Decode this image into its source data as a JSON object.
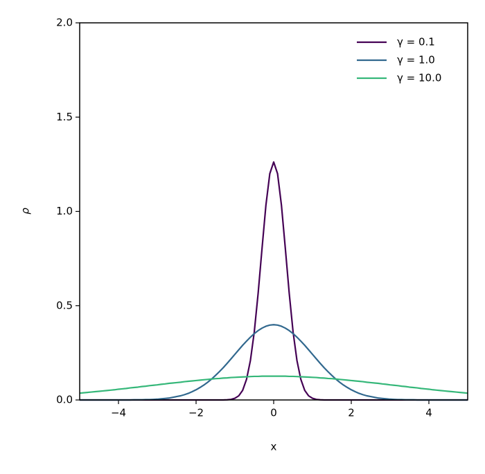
{
  "chart_data": {
    "type": "line",
    "xlabel": "x",
    "ylabel": "ρ",
    "x": [
      -5.0,
      -4.9,
      -4.8,
      -4.7,
      -4.6,
      -4.5,
      -4.4,
      -4.3,
      -4.2,
      -4.1,
      -4.0,
      -3.9,
      -3.8,
      -3.7,
      -3.6,
      -3.5,
      -3.4,
      -3.3,
      -3.2,
      -3.1,
      -3.0,
      -2.9,
      -2.8,
      -2.7,
      -2.6,
      -2.5,
      -2.4,
      -2.3,
      -2.2,
      -2.1,
      -2.0,
      -1.9,
      -1.8,
      -1.7,
      -1.6,
      -1.5,
      -1.4,
      -1.3,
      -1.2,
      -1.1,
      -1.0,
      -0.9,
      -0.8,
      -0.7,
      -0.6,
      -0.5,
      -0.4,
      -0.3,
      -0.2,
      -0.1,
      0.0,
      0.1,
      0.2,
      0.3,
      0.4,
      0.5,
      0.6,
      0.7,
      0.8,
      0.9,
      1.0,
      1.1,
      1.2,
      1.3,
      1.4,
      1.5,
      1.6,
      1.7,
      1.8,
      1.9,
      2.0,
      2.1,
      2.2,
      2.3,
      2.4,
      2.5,
      2.6,
      2.7,
      2.8,
      2.9,
      3.0,
      3.1,
      3.2,
      3.3,
      3.4,
      3.5,
      3.6,
      3.7,
      3.8,
      3.9,
      4.0,
      4.1,
      4.2,
      4.3,
      4.4,
      4.5,
      4.6,
      4.7,
      4.8,
      4.9,
      5.0
    ],
    "series": [
      {
        "name": "γ = 0.1",
        "color": "#440154",
        "values": [
          0,
          0,
          0,
          0,
          0,
          0,
          0,
          0,
          0,
          0,
          0,
          0,
          0,
          0,
          0,
          0,
          0,
          0,
          0,
          0,
          0,
          0,
          0,
          0,
          0,
          0,
          0,
          0,
          0,
          0,
          0,
          0,
          0,
          0,
          0,
          0,
          0,
          0,
          0.001,
          0.003,
          0.009,
          0.022,
          0.051,
          0.109,
          0.209,
          0.361,
          0.567,
          0.804,
          1.033,
          1.2,
          1.262,
          1.2,
          1.033,
          0.804,
          0.567,
          0.361,
          0.209,
          0.109,
          0.051,
          0.022,
          0.009,
          0.003,
          0.001,
          0,
          0,
          0,
          0,
          0,
          0,
          0,
          0,
          0,
          0,
          0,
          0,
          0,
          0,
          0,
          0,
          0,
          0,
          0,
          0,
          0,
          0,
          0,
          0,
          0,
          0,
          0,
          0,
          0,
          0,
          0,
          0,
          0,
          0,
          0,
          0,
          0,
          0
        ]
      },
      {
        "name": "γ = 1.0",
        "color": "#31688e",
        "values": [
          0,
          0,
          0,
          0,
          0,
          0,
          0,
          0,
          0,
          0,
          0,
          0,
          0,
          0,
          0.001,
          0.001,
          0.001,
          0.002,
          0.002,
          0.003,
          0.004,
          0.006,
          0.008,
          0.01,
          0.014,
          0.018,
          0.022,
          0.028,
          0.035,
          0.044,
          0.054,
          0.066,
          0.079,
          0.094,
          0.111,
          0.13,
          0.15,
          0.171,
          0.194,
          0.218,
          0.242,
          0.266,
          0.29,
          0.312,
          0.333,
          0.352,
          0.368,
          0.381,
          0.391,
          0.397,
          0.399,
          0.397,
          0.391,
          0.381,
          0.368,
          0.352,
          0.333,
          0.312,
          0.29,
          0.266,
          0.242,
          0.218,
          0.194,
          0.171,
          0.15,
          0.13,
          0.111,
          0.094,
          0.079,
          0.066,
          0.054,
          0.044,
          0.035,
          0.028,
          0.022,
          0.018,
          0.014,
          0.01,
          0.008,
          0.006,
          0.004,
          0.003,
          0.002,
          0.002,
          0.001,
          0.001,
          0.001,
          0,
          0,
          0,
          0,
          0,
          0,
          0,
          0,
          0,
          0,
          0,
          0,
          0,
          0
        ]
      },
      {
        "name": "γ = 10.0",
        "color": "#35b779",
        "values": [
          0.036,
          0.038,
          0.04,
          0.042,
          0.044,
          0.046,
          0.048,
          0.05,
          0.052,
          0.054,
          0.057,
          0.059,
          0.061,
          0.064,
          0.066,
          0.068,
          0.071,
          0.073,
          0.076,
          0.078,
          0.08,
          0.083,
          0.085,
          0.088,
          0.09,
          0.092,
          0.094,
          0.097,
          0.099,
          0.101,
          0.103,
          0.105,
          0.107,
          0.109,
          0.111,
          0.113,
          0.114,
          0.116,
          0.117,
          0.119,
          0.12,
          0.121,
          0.122,
          0.123,
          0.124,
          0.125,
          0.125,
          0.126,
          0.126,
          0.126,
          0.126,
          0.126,
          0.126,
          0.126,
          0.125,
          0.125,
          0.124,
          0.123,
          0.122,
          0.121,
          0.12,
          0.119,
          0.117,
          0.116,
          0.114,
          0.113,
          0.111,
          0.109,
          0.107,
          0.105,
          0.103,
          0.101,
          0.099,
          0.097,
          0.094,
          0.092,
          0.09,
          0.088,
          0.085,
          0.083,
          0.08,
          0.078,
          0.076,
          0.073,
          0.071,
          0.068,
          0.066,
          0.064,
          0.061,
          0.059,
          0.057,
          0.054,
          0.052,
          0.05,
          0.048,
          0.046,
          0.044,
          0.042,
          0.04,
          0.038,
          0.036
        ]
      }
    ],
    "xlim": [
      -5,
      5
    ],
    "ylim": [
      0,
      2
    ],
    "xticks": [
      {
        "value": -4,
        "label": "−4"
      },
      {
        "value": -2,
        "label": "−2"
      },
      0,
      2,
      4
    ],
    "yticks": [
      {
        "value": 0,
        "label": "0.0"
      },
      0.5,
      {
        "value": 1,
        "label": "1.0"
      },
      1.5,
      {
        "value": 2,
        "label": "2.0"
      }
    ],
    "legend": "upper right"
  }
}
